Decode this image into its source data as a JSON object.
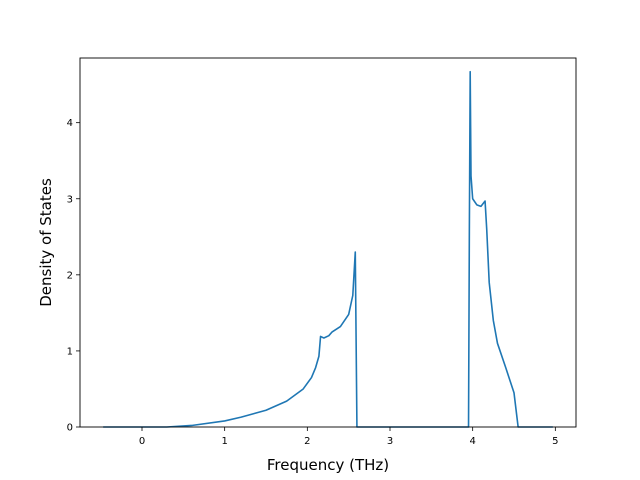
{
  "chart_data": {
    "type": "line",
    "title": "",
    "xlabel": "Frequency (THz)",
    "ylabel": "Density of States",
    "xlim": [
      -0.75,
      5.25
    ],
    "ylim": [
      0,
      4.85
    ],
    "grid": false,
    "legend": "none",
    "xticks": [
      0,
      1,
      2,
      3,
      4,
      5
    ],
    "xtick_labels": [
      "0",
      "1",
      "2",
      "3",
      "4",
      "5"
    ],
    "yticks": [
      0,
      1,
      2,
      3,
      4
    ],
    "ytick_labels": [
      "0",
      "1",
      "2",
      "3",
      "4"
    ],
    "series": [
      {
        "color": "#1f77b4",
        "x": [
          -0.47,
          0.0,
          0.3,
          0.6,
          1.0,
          1.2,
          1.5,
          1.75,
          1.95,
          2.05,
          2.1,
          2.14,
          2.16,
          2.2,
          2.26,
          2.3,
          2.4,
          2.5,
          2.55,
          2.58,
          2.6,
          3.95,
          3.96,
          3.97,
          3.98,
          4.0,
          4.05,
          4.1,
          4.15,
          4.17,
          4.2,
          4.25,
          4.3,
          4.4,
          4.5,
          4.55,
          4.97
        ],
        "y": [
          0.0,
          0.0,
          0.0,
          0.02,
          0.08,
          0.13,
          0.22,
          0.34,
          0.5,
          0.65,
          0.78,
          0.93,
          1.19,
          1.17,
          1.2,
          1.25,
          1.32,
          1.48,
          1.73,
          2.3,
          0.0,
          0.0,
          2.6,
          4.67,
          3.3,
          3.0,
          2.92,
          2.9,
          2.97,
          2.6,
          1.9,
          1.4,
          1.1,
          0.78,
          0.45,
          0.0,
          0.0
        ]
      }
    ]
  }
}
